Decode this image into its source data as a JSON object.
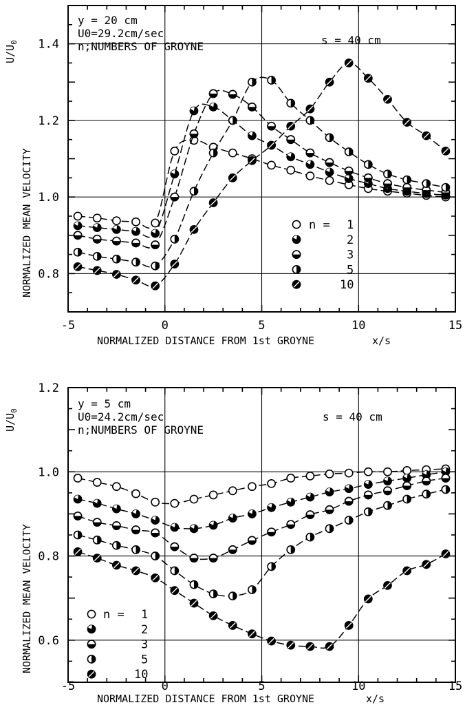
{
  "chart_data": [
    {
      "type": "line",
      "xlabel": "NORMALIZED DISTANCE FROM 1st GROYNE",
      "xunit": "x/s",
      "ylabel": "NORMALIZED MEAN VELOCITY",
      "yunit": "U/U0",
      "xlim": [
        -5,
        15
      ],
      "ylim": [
        0.7,
        1.5
      ],
      "xticks": [
        "-5",
        "0",
        "5",
        "10",
        "15"
      ],
      "yticks": [
        "0.8",
        "1.0",
        "1.2",
        "1.4"
      ],
      "ytick_values": [
        0.8,
        1.0,
        1.2,
        1.4
      ],
      "grid_x": [
        0,
        5,
        10
      ],
      "grid_y": [
        0.8,
        1.0,
        1.2,
        1.4
      ],
      "annotations": {
        "y_line": "y = 20 cm",
        "u0_line": "U0=29.2cm/sec",
        "n_line": "n;NUMBERS OF GROYNE",
        "spacing": "s = 40 cm"
      },
      "legend": {
        "position": "lower-right",
        "title": "n =",
        "entries": [
          "1",
          "2",
          "3",
          "5",
          "10"
        ]
      },
      "series": [
        {
          "name": "1",
          "marker": "open",
          "x": [
            -4.5,
            -3.5,
            -2.5,
            -1.5,
            -0.5,
            0.5,
            1.5,
            2.5,
            3.5,
            4.5,
            5.5,
            6.5,
            7.5,
            8.5,
            9.5,
            10.5,
            11.5,
            12.5,
            13.5,
            14.5
          ],
          "y": [
            0.95,
            0.945,
            0.938,
            0.935,
            0.932,
            1.12,
            1.148,
            1.13,
            1.115,
            1.1,
            1.083,
            1.07,
            1.055,
            1.043,
            1.032,
            1.022,
            1.015,
            1.01,
            1.004,
            1.0
          ]
        },
        {
          "name": "2",
          "marker": "mostly-filled",
          "x": [
            -4.5,
            -3.5,
            -2.5,
            -1.5,
            -0.5,
            0.5,
            1.5,
            2.5,
            3.5,
            4.5,
            5.5,
            6.5,
            7.5,
            8.5,
            9.5,
            10.5,
            11.5,
            12.5,
            13.5,
            14.5
          ],
          "y": [
            0.925,
            0.92,
            0.915,
            0.91,
            0.905,
            1.06,
            1.225,
            1.235,
            1.2,
            1.16,
            1.135,
            1.105,
            1.085,
            1.065,
            1.048,
            1.035,
            1.022,
            1.015,
            1.009,
            1.005
          ]
        },
        {
          "name": "3",
          "marker": "half-horizontal",
          "x": [
            -4.5,
            -3.5,
            -2.5,
            -1.5,
            -0.5,
            0.5,
            1.5,
            2.5,
            3.5,
            4.5,
            5.5,
            6.5,
            7.5,
            8.5,
            9.5,
            10.5,
            11.5,
            12.5,
            13.5,
            14.5
          ],
          "y": [
            0.9,
            0.89,
            0.885,
            0.88,
            0.875,
            1.0,
            1.165,
            1.27,
            1.268,
            1.235,
            1.185,
            1.15,
            1.115,
            1.09,
            1.068,
            1.05,
            1.035,
            1.025,
            1.018,
            1.012
          ]
        },
        {
          "name": "5",
          "marker": "half-vertical",
          "x": [
            -4.5,
            -3.5,
            -2.5,
            -1.5,
            -0.5,
            0.5,
            1.5,
            2.5,
            3.5,
            4.5,
            5.5,
            6.5,
            7.5,
            8.5,
            9.5,
            10.5,
            11.5,
            12.5,
            13.5,
            14.5
          ],
          "y": [
            0.856,
            0.845,
            0.838,
            0.83,
            0.82,
            0.89,
            1.015,
            1.115,
            1.2,
            1.3,
            1.305,
            1.245,
            1.2,
            1.155,
            1.118,
            1.085,
            1.06,
            1.045,
            1.035,
            1.025
          ]
        },
        {
          "name": "10",
          "marker": "filled-open-slash",
          "x": [
            -4.5,
            -3.5,
            -2.5,
            -1.5,
            -0.5,
            0.5,
            1.5,
            2.5,
            3.5,
            4.5,
            5.5,
            6.5,
            7.5,
            8.5,
            9.5,
            10.5,
            11.5,
            12.5,
            13.5,
            14.5
          ],
          "y": [
            0.818,
            0.808,
            0.798,
            0.783,
            0.768,
            0.825,
            0.915,
            0.985,
            1.05,
            1.095,
            1.135,
            1.185,
            1.23,
            1.3,
            1.35,
            1.31,
            1.255,
            1.195,
            1.16,
            1.12
          ]
        }
      ]
    },
    {
      "type": "line",
      "xlabel": "NORMALIZED DISTANCE FROM 1st GROYNE",
      "xunit": "x/s",
      "ylabel": "NORMALIZED MEAN VELOCITY",
      "yunit": "U/U0",
      "xlim": [
        -5,
        15
      ],
      "ylim": [
        0.5,
        1.2
      ],
      "xticks": [
        "-5",
        "0",
        "5",
        "10",
        "15"
      ],
      "yticks": [
        "0.6",
        "0.8",
        "1.0",
        "1.2"
      ],
      "ytick_values": [
        0.6,
        0.8,
        1.0,
        1.2
      ],
      "grid_x": [
        0,
        5,
        10
      ],
      "grid_y": [
        0.6,
        0.8,
        1.0
      ],
      "annotations": {
        "y_line": "y =  5 cm",
        "u0_line": "U0=24.2cm/sec",
        "n_line": "n;NUMBERS OF GROYNE",
        "spacing": "s = 40 cm"
      },
      "legend": {
        "position": "lower-left",
        "title": "n =",
        "entries": [
          "1",
          "2",
          "3",
          "5",
          "10"
        ]
      },
      "series": [
        {
          "name": "1",
          "marker": "open",
          "x": [
            -4.5,
            -3.5,
            -2.5,
            -1.5,
            -0.5,
            0.5,
            1.5,
            2.5,
            3.5,
            4.5,
            5.5,
            6.5,
            7.5,
            8.5,
            9.5,
            10.5,
            11.5,
            12.5,
            13.5,
            14.5
          ],
          "y": [
            0.985,
            0.975,
            0.965,
            0.948,
            0.928,
            0.925,
            0.935,
            0.945,
            0.955,
            0.965,
            0.972,
            0.985,
            0.99,
            0.995,
            0.997,
            1.0,
            1.0,
            1.003,
            1.005,
            1.007
          ]
        },
        {
          "name": "2",
          "marker": "mostly-filled",
          "x": [
            -4.5,
            -3.5,
            -2.5,
            -1.5,
            -0.5,
            0.5,
            1.5,
            2.5,
            3.5,
            4.5,
            5.5,
            6.5,
            7.5,
            8.5,
            9.5,
            10.5,
            11.5,
            12.5,
            13.5,
            14.5
          ],
          "y": [
            0.935,
            0.925,
            0.912,
            0.9,
            0.885,
            0.868,
            0.865,
            0.873,
            0.89,
            0.9,
            0.915,
            0.928,
            0.94,
            0.952,
            0.96,
            0.97,
            0.978,
            0.985,
            0.993,
            1.0
          ]
        },
        {
          "name": "3",
          "marker": "half-horizontal",
          "x": [
            -4.5,
            -3.5,
            -2.5,
            -1.5,
            -0.5,
            0.5,
            1.5,
            2.5,
            3.5,
            4.5,
            5.5,
            6.5,
            7.5,
            8.5,
            9.5,
            10.5,
            11.5,
            12.5,
            13.5,
            14.5
          ],
          "y": [
            0.895,
            0.88,
            0.872,
            0.862,
            0.855,
            0.822,
            0.795,
            0.795,
            0.815,
            0.837,
            0.857,
            0.875,
            0.898,
            0.91,
            0.93,
            0.945,
            0.955,
            0.967,
            0.978,
            0.985
          ]
        },
        {
          "name": "5",
          "marker": "half-vertical",
          "x": [
            -4.5,
            -3.5,
            -2.5,
            -1.5,
            -0.5,
            0.5,
            1.5,
            2.5,
            3.5,
            4.5,
            5.5,
            6.5,
            7.5,
            8.5,
            9.5,
            10.5,
            11.5,
            12.5,
            13.5,
            14.5
          ],
          "y": [
            0.85,
            0.838,
            0.825,
            0.815,
            0.8,
            0.765,
            0.732,
            0.71,
            0.705,
            0.72,
            0.775,
            0.815,
            0.845,
            0.865,
            0.885,
            0.905,
            0.92,
            0.935,
            0.947,
            0.958
          ]
        },
        {
          "name": "10",
          "marker": "filled-open-slash",
          "x": [
            -4.5,
            -3.5,
            -2.5,
            -1.5,
            -0.5,
            0.5,
            1.5,
            2.5,
            3.5,
            4.5,
            5.5,
            6.5,
            7.5,
            8.5,
            9.5,
            10.5,
            11.5,
            12.5,
            13.5,
            14.5
          ],
          "y": [
            0.81,
            0.795,
            0.778,
            0.765,
            0.748,
            0.718,
            0.688,
            0.658,
            0.635,
            0.615,
            0.598,
            0.588,
            0.585,
            0.585,
            0.635,
            0.698,
            0.73,
            0.765,
            0.78,
            0.805
          ]
        }
      ]
    }
  ]
}
